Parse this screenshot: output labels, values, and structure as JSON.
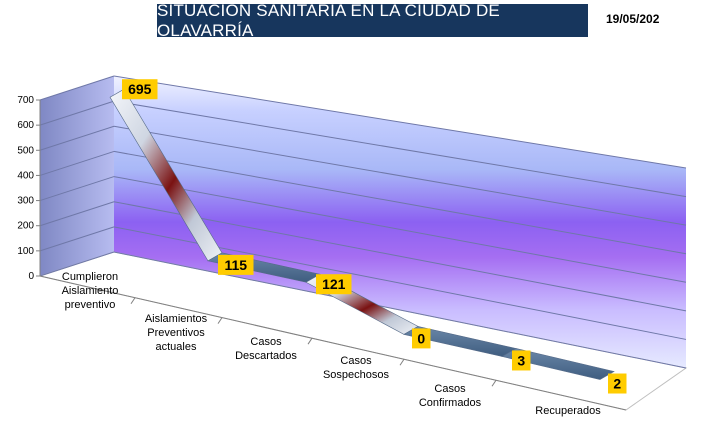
{
  "header": {
    "title": "SITUACIÓN SANITARIA EN LA CIUDAD DE OLAVARRÍA",
    "date": "19/05/202"
  },
  "chart_data": {
    "type": "line",
    "style": "3d-ribbon",
    "categories": [
      [
        "Cumplieron",
        "Aislamiento",
        "preventivo"
      ],
      [
        "Aislamientos",
        "Preventivos",
        "actuales"
      ],
      [
        "Casos",
        "Descartados"
      ],
      [
        "Casos",
        "Sospechosos"
      ],
      [
        "Casos",
        "Confirmados"
      ],
      [
        "Recuperados"
      ]
    ],
    "values": [
      695,
      115,
      121,
      0,
      3,
      2
    ],
    "data_labels": [
      "695",
      "115",
      "121",
      "0",
      "3",
      "2"
    ],
    "ylim": [
      0,
      700
    ],
    "yticks": [
      "0",
      "100",
      "200",
      "300",
      "400",
      "500",
      "600",
      "700"
    ],
    "grid": true,
    "legend": "none",
    "colors": {
      "wall_light": "#eaf0ff",
      "wall_purple": "#8a5cf0",
      "ribbon_light": "#f2f4f8",
      "ribbon_dark": "#7a1010",
      "ribbon_flat": "#4a6a8e",
      "label_bg": "#ffcc00"
    }
  }
}
